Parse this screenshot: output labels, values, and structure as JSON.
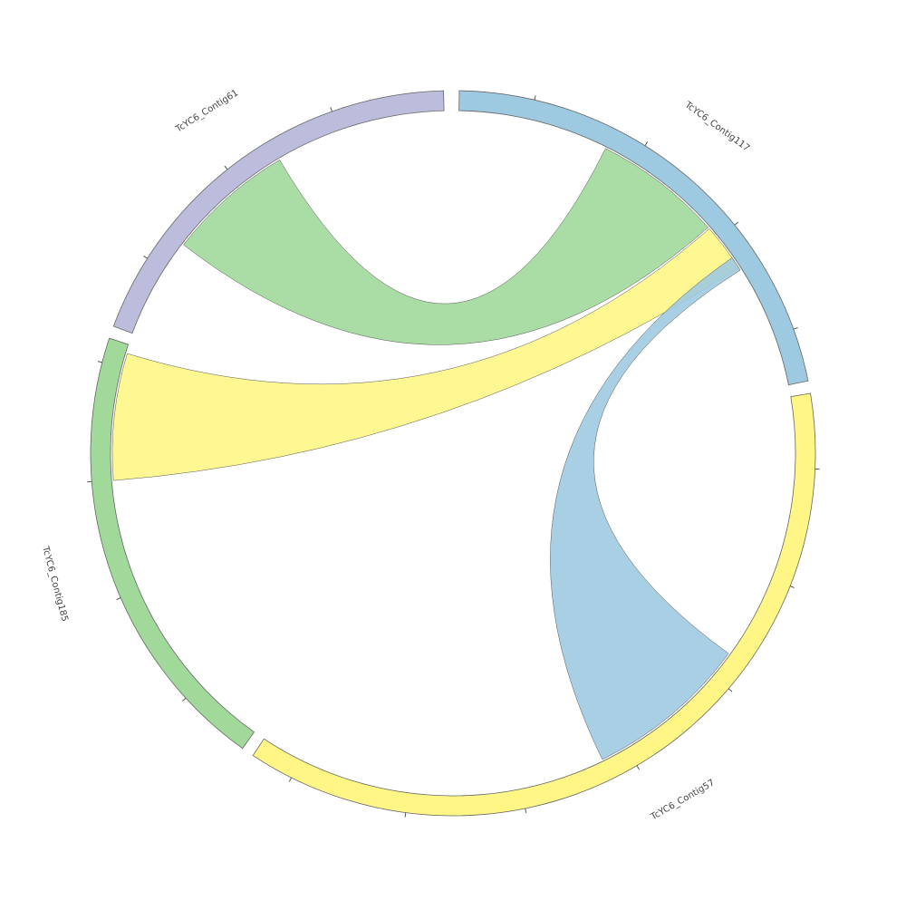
{
  "nodes": [
    {
      "label": "TcYC6_Contig117",
      "color": "#9ecae1"
    },
    {
      "label": "TcYC6_Contig57",
      "color": "#fff685"
    },
    {
      "label": "TcYC6_Contig185",
      "color": "#a1d99b"
    },
    {
      "label": "TcYC6_Contig61",
      "color": "#bcbddc"
    }
  ]
}
